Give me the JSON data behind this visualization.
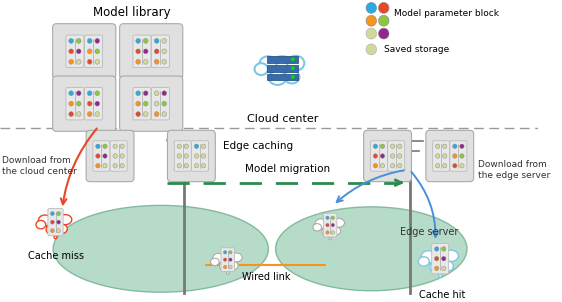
{
  "bg_color": "#ffffff",
  "model_library_text": "Model library",
  "cloud_center_text": "Cloud center",
  "edge_caching_text": "Edge caching",
  "model_migration_text": "Model migration",
  "wired_link_text": "Wired link",
  "cache_miss_text": "Cache miss",
  "cache_hit_text": "Cache hit",
  "edge_server_text": "Edge server",
  "download_cloud_text": "Download from\nthe cloud center",
  "download_edge_text": "Download from\nthe edge server",
  "legend_param_text": "Model parameter block",
  "legend_saved_text": "Saved storage",
  "dot_blue": "#29abe2",
  "dot_orange": "#f7941d",
  "dot_red": "#e8472a",
  "dot_green": "#8dc63f",
  "dot_purple": "#92278f",
  "dot_yellow": "#d4d89a",
  "cloud_edge_color": "#7ec8e3",
  "cloud_fill": "#ffffff",
  "server_blue": "#3a6aaa",
  "arrow_red": "#e8472a",
  "arrow_green": "#2d8a4e",
  "arrow_blue": "#4a90d9",
  "wired_color": "#f7941d",
  "ellipse_fill": "#9fcfb8",
  "ellipse_edge": "#6aaa88",
  "dashed_line_color": "#999999",
  "model_bg": "#e8e8e8",
  "model_border": "#bbbbbb",
  "group_bg": "#e0e0e0",
  "group_border": "#aaaaaa",
  "miss_cloud_color": "#e8472a",
  "hit_cloud_color": "#7ec8e3",
  "thought_cloud_color": "#aaaaaa"
}
